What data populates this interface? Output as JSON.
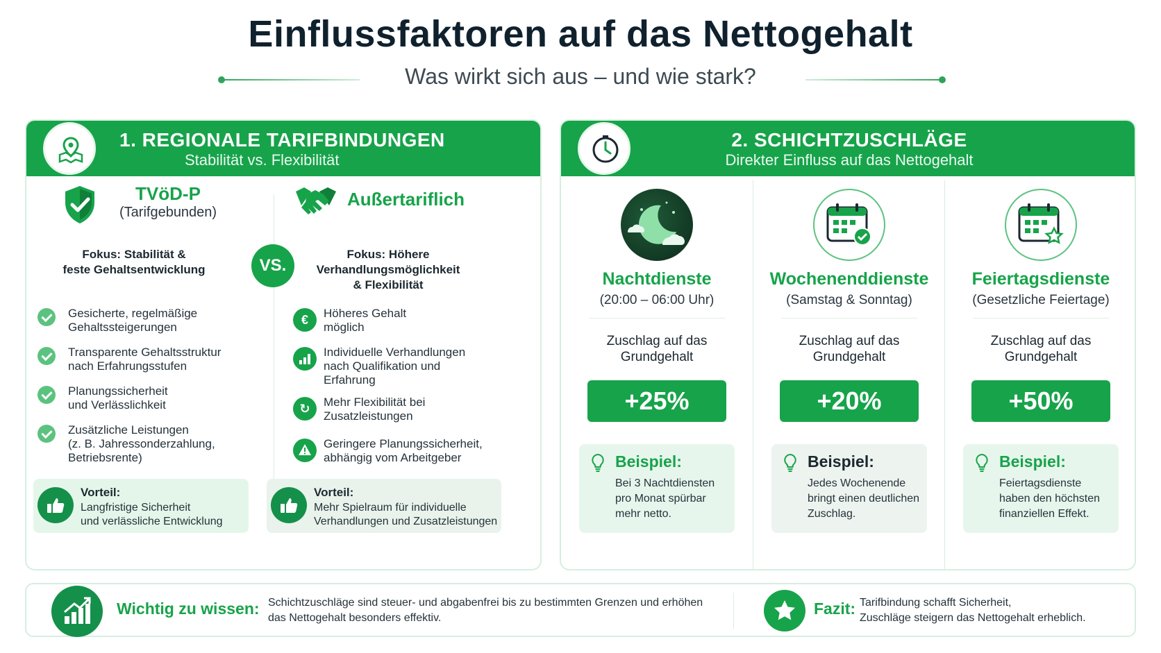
{
  "header": {
    "title": "Einflussfaktoren auf das Nettogehalt",
    "subtitle": "Was wirkt sich aus – und wie stark?"
  },
  "colors": {
    "accent": "#17a34a",
    "dark": "#10212e",
    "light_bg": "#e7f6ec"
  },
  "section1": {
    "title": "1. REGIONALE TARIFBINDUNGEN",
    "subtitle": "Stabilität vs. Flexibilität",
    "icon": "map-pin-icon",
    "vs": "VS.",
    "left": {
      "title": "TVöD-P",
      "subtitle": "(Tarifgebunden)",
      "icon": "shield-check-icon",
      "focus": [
        "Fokus: Stabilität &",
        "feste Gehaltsentwicklung"
      ],
      "items": [
        [
          "Gesicherte, regelmäßige",
          "Gehaltssteigerungen"
        ],
        [
          "Transparente Gehaltsstruktur",
          "nach Erfahrungsstufen"
        ],
        [
          "Planungssicherheit",
          "und Verlässlichkeit"
        ],
        [
          "Zusätzliche Leistungen",
          "(z. B. Jahressonderzahlung,",
          "Betriebsrente)"
        ]
      ],
      "advantage_title": "Vorteil:",
      "advantage_text": [
        "Langfristige Sicherheit",
        "und verlässliche Entwicklung"
      ]
    },
    "right": {
      "title": "Außertariflich",
      "icon": "handshake-icon",
      "focus": [
        "Fokus: Höhere",
        "Verhandlungsmöglichkeit",
        "& Flexibilität"
      ],
      "items": [
        {
          "icon": "euro-icon",
          "glyph": "€",
          "lines": [
            "Höheres Gehalt",
            "möglich"
          ]
        },
        {
          "icon": "bar-chart-icon",
          "glyph": "▮",
          "lines": [
            "Individuelle Verhandlungen",
            "nach Qualifikation und",
            "Erfahrung"
          ]
        },
        {
          "icon": "refresh-icon",
          "glyph": "↻",
          "lines": [
            "Mehr Flexibilität bei",
            "Zusatzleistungen"
          ]
        },
        {
          "icon": "warning-icon",
          "glyph": "!",
          "lines": [
            "Geringere Planungssicherheit,",
            "abhängig vom Arbeitgeber"
          ]
        }
      ],
      "advantage_title": "Vorteil:",
      "advantage_text": [
        "Mehr Spielraum für individuelle",
        "Verhandlungen und Zusatzleistungen"
      ]
    }
  },
  "section2": {
    "title": "2. SCHICHTZUSCHLÄGE",
    "subtitle": "Direkter Einfluss auf das Nettogehalt",
    "icon": "clock-icon",
    "shifts": [
      {
        "icon": "moon-night-icon",
        "title": "Nachtdienste",
        "subtitle": "(20:00 – 06:00 Uhr)",
        "label": [
          "Zuschlag auf das",
          "Grundgehalt"
        ],
        "percent": "+25%",
        "example_title": "Beispiel:",
        "example_text": [
          "Bei 3 Nachtdiensten",
          "pro Monat spürbar",
          "mehr netto."
        ]
      },
      {
        "icon": "calendar-check-icon",
        "title": "Wochenenddienste",
        "subtitle": "(Samstag & Sonntag)",
        "label": [
          "Zuschlag auf das",
          "Grundgehalt"
        ],
        "percent": "+20%",
        "example_title": "Beispiel:",
        "example_text": [
          "Jedes Wochenende",
          "bringt einen deutlichen",
          "Zuschlag."
        ]
      },
      {
        "icon": "calendar-star-icon",
        "title": "Feiertagsdienste",
        "subtitle": "(Gesetzliche Feiertage)",
        "label": [
          "Zuschlag auf das",
          "Grundgehalt"
        ],
        "percent": "+50%",
        "example_title": "Beispiel:",
        "example_text": [
          "Feiertagsdienste",
          "haben den höchsten",
          "finanziellen Effekt."
        ]
      }
    ]
  },
  "footer": {
    "important_title": "Wichtig zu wissen:",
    "important_text": [
      "Schichtzuschläge sind steuer- und abgabenfrei bis zu bestimmten Grenzen und erhöhen",
      "das Nettogehalt besonders effektiv."
    ],
    "conclusion_title": "Fazit:",
    "conclusion_text": [
      "Tarifbindung schafft Sicherheit,",
      "Zuschläge steigern das Nettogehalt erheblich."
    ]
  }
}
